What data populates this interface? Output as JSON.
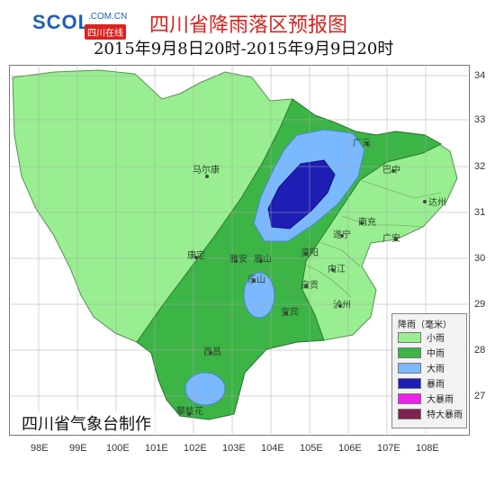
{
  "header": {
    "logo_text": "SCOL",
    "logo_domain": ".COM.CN",
    "logo_sub": "四川在线",
    "title": "四川省降雨落区预报图",
    "subtitle": "2015年9月8日20时-2015年9月9日20时"
  },
  "axes": {
    "x_ticks": [
      "98E",
      "99E",
      "100E",
      "101E",
      "102E",
      "103E",
      "104E",
      "105E",
      "106E",
      "107E",
      "108E"
    ],
    "y_ticks": [
      "34",
      "33",
      "32",
      "31",
      "30",
      "29",
      "28",
      "27"
    ]
  },
  "places": [
    "马尔康",
    "广元",
    "巴中",
    "达州",
    "南充",
    "广安",
    "遂宁",
    "康定",
    "雅安",
    "眉山",
    "乐山",
    "资阳",
    "内江",
    "自贡",
    "宜宾",
    "泸州",
    "西昌",
    "攀枝花"
  ],
  "legend": {
    "title": "降雨（毫米）",
    "items": [
      {
        "label": "小雨",
        "color": "#98ee90"
      },
      {
        "label": "中雨",
        "color": "#3cb446"
      },
      {
        "label": "大雨",
        "color": "#7ab8ff"
      },
      {
        "label": "暴雨",
        "color": "#1e1eb4"
      },
      {
        "label": "大暴雨",
        "color": "#ee22ee"
      },
      {
        "label": "特大暴雨",
        "color": "#802050"
      }
    ]
  },
  "credit": "四川省气象台制作"
}
